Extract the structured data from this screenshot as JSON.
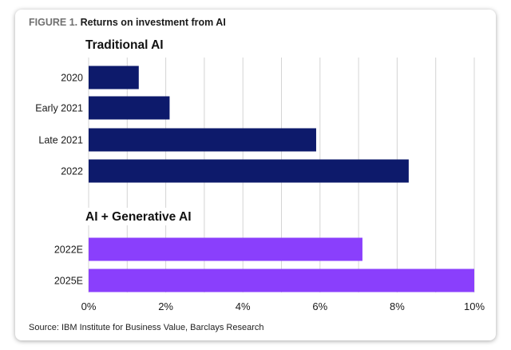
{
  "figure": {
    "number": "FIGURE 1.",
    "title": "Returns on investment from AI",
    "source": "Source: IBM Institute for Business Value, Barclays Research"
  },
  "colors": {
    "traditional": "#0d1a6b",
    "generative": "#8a3ffc",
    "grid": "#d4d4d4"
  },
  "chart_data": {
    "type": "bar",
    "orientation": "horizontal",
    "title": "Returns on investment from AI",
    "xlim": [
      0,
      10
    ],
    "ticks": [
      0,
      2,
      4,
      6,
      8,
      10
    ],
    "tick_labels": [
      "0%",
      "2%",
      "4%",
      "6%",
      "8%",
      "10%"
    ],
    "grid": true,
    "groups": [
      {
        "title": "Traditional AI",
        "color": "#0d1a6b",
        "categories": [
          "2020",
          "Early 2021",
          "Late 2021",
          "2022"
        ],
        "values": [
          1.3,
          2.1,
          5.9,
          8.3
        ]
      },
      {
        "title": "AI + Generative AI",
        "color": "#8a3ffc",
        "categories": [
          "2022E",
          "2025E"
        ],
        "values": [
          7.1,
          10.0
        ]
      }
    ]
  }
}
